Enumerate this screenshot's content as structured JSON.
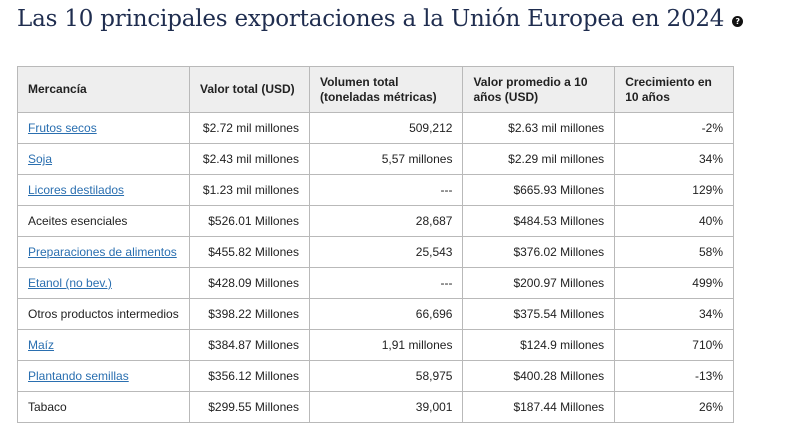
{
  "page": {
    "title": "Las 10 principales exportaciones a la Unión Europea en 2024",
    "help_icon": "question-circle-icon"
  },
  "table": {
    "headers": {
      "mercancia": "Mercancía",
      "valor_total": "Valor total (USD)",
      "volumen_total": "Volumen total (toneladas métricas)",
      "valor_promedio": "Valor promedio a 10 años (USD)",
      "crecimiento": "Crecimiento en 10 años"
    },
    "rows": [
      {
        "name": "Frutos secos",
        "link": true,
        "value": "$2.72 mil millones",
        "volume": "509,212",
        "avg": "$2.63 mil millones",
        "growth": "-2%"
      },
      {
        "name": "Soja",
        "link": true,
        "value": "$2.43 mil millones",
        "volume": "5,57 millones",
        "avg": "$2.29 mil millones",
        "growth": "34%"
      },
      {
        "name": "Licores destilados",
        "link": true,
        "value": "$1.23 mil millones",
        "volume": "---",
        "avg": "$665.93 Millones",
        "growth": "129%"
      },
      {
        "name": "Aceites esenciales",
        "link": false,
        "value": "$526.01 Millones",
        "volume": "28,687",
        "avg": "$484.53 Millones",
        "growth": "40%"
      },
      {
        "name": "Preparaciones de alimentos",
        "link": true,
        "value": "$455.82 Millones",
        "volume": "25,543",
        "avg": "$376.02 Millones",
        "growth": "58%"
      },
      {
        "name": "Etanol (no bev.)",
        "link": true,
        "value": "$428.09 Millones",
        "volume": "---",
        "avg": "$200.97 Millones",
        "growth": "499%"
      },
      {
        "name": "Otros productos intermedios",
        "link": false,
        "value": "$398.22 Millones",
        "volume": "66,696",
        "avg": "$375.54 Millones",
        "growth": "34%"
      },
      {
        "name": "Maíz",
        "link": true,
        "value": "$384.87 Millones",
        "volume": "1,91 millones",
        "avg": "$124.9 millones",
        "growth": "710%"
      },
      {
        "name": "Plantando semillas",
        "link": true,
        "value": "$356.12 Millones",
        "volume": "58,975",
        "avg": "$400.28 Millones",
        "growth": "-13%"
      },
      {
        "name": "Tabaco",
        "link": false,
        "value": "$299.55 Millones",
        "volume": "39,001",
        "avg": "$187.44 Millones",
        "growth": "26%"
      }
    ]
  }
}
